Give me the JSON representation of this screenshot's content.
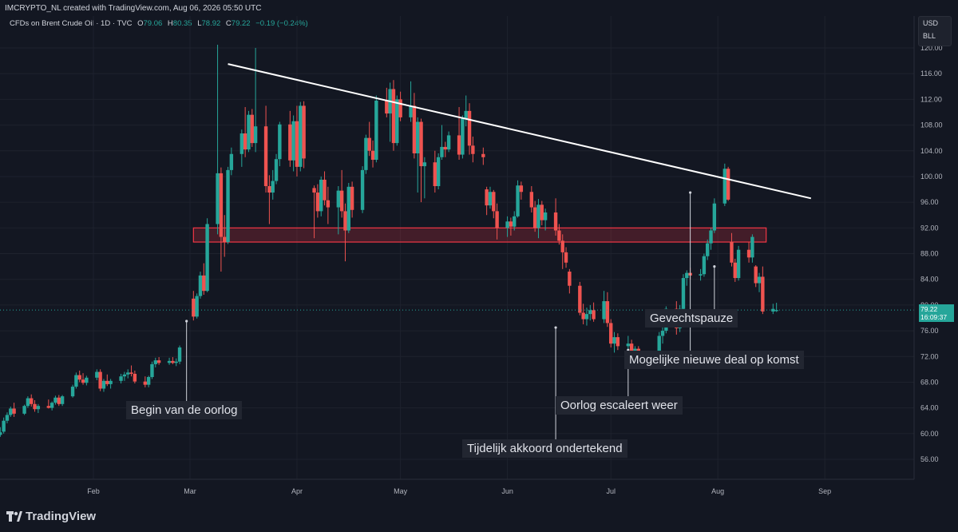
{
  "header": {
    "watermark": "IMCRYPTO_NL created with TradingView.com, Aug 06, 2026 05:50 UTC"
  },
  "legend": {
    "symbol": "CFDs on Brent Crude Oil · 1D · TVC",
    "open_label": "O",
    "open": "79.06",
    "high_label": "H",
    "high": "80.35",
    "low_label": "L",
    "low": "78.92",
    "close_label": "C",
    "close": "79.22",
    "change": "−0.19 (−0.24%)"
  },
  "currency": {
    "line1": "USD",
    "line2": "BLL"
  },
  "last_price": {
    "price": "79.22",
    "countdown": "16:09:37"
  },
  "annotations": [
    {
      "text": "Begin van de oorlog"
    },
    {
      "text": "Tijdelijk akkoord ondertekend"
    },
    {
      "text": "Oorlog escaleert weer"
    },
    {
      "text": "Mogelijke nieuwe deal op komst"
    },
    {
      "text": "Gevechtspauze"
    }
  ],
  "footer": {
    "logo_text": "TradingView"
  },
  "colors": {
    "up": "#26a69a",
    "down": "#ef5350",
    "trendline": "#ffffff",
    "zone": "#f23645",
    "background": "#131722"
  },
  "chart_data": {
    "type": "candlestick",
    "symbol": "CFDs on Brent Crude Oil",
    "interval": "1D",
    "x_tick_labels": [
      "Feb",
      "Mar",
      "Apr",
      "May",
      "Jun",
      "Jul",
      "Aug",
      "Sep"
    ],
    "y_ticks": [
      56,
      60,
      64,
      68,
      72,
      76,
      80,
      84,
      88,
      92,
      96,
      100,
      104,
      108,
      112,
      116,
      120
    ],
    "y_tick_labels": [
      "56.00",
      "60.00",
      "64.00",
      "68.00",
      "72.00",
      "76.00",
      "80.00",
      "84.00",
      "88.00",
      "92.00",
      "96.00",
      "100.00",
      "104.00",
      "108.00",
      "112.00",
      "116.00",
      "120.00"
    ],
    "ylim": [
      53,
      124
    ],
    "grid": true,
    "resistance_zone": {
      "from": 89.8,
      "to": 92.0,
      "start": "2026-03-02",
      "end": "2026-08-15"
    },
    "trendline": {
      "start": {
        "date": "2026-03-12",
        "price": 117.5
      },
      "end": {
        "date": "2026-08-28",
        "price": 96.6
      }
    },
    "event_markers": [
      {
        "date": "2026-02-28",
        "price": 77.5,
        "label": "Begin van de oorlog"
      },
      {
        "date": "2026-06-15",
        "price": 76.5,
        "label": "Tijdelijk akkoord ondertekend"
      },
      {
        "date": "2026-07-06",
        "price": 73.0,
        "label": "Oorlog escaleert weer"
      },
      {
        "date": "2026-07-24",
        "price": 97.5,
        "label": "Gevechtspauze"
      },
      {
        "date": "2026-07-31",
        "price": 86.0,
        "label": "Mogelijke nieuwe deal op komst"
      }
    ],
    "candles": [
      [
        "2026-01-05",
        59.8,
        61.0,
        59.5,
        60.2
      ],
      [
        "2026-01-06",
        60.3,
        62.5,
        60.0,
        62.0
      ],
      [
        "2026-01-07",
        62.0,
        63.3,
        61.6,
        62.9
      ],
      [
        "2026-01-08",
        62.9,
        64.2,
        62.6,
        63.9
      ],
      [
        "2026-01-09",
        63.9,
        64.8,
        62.6,
        63.1
      ],
      [
        "2026-01-12",
        63.1,
        64.5,
        62.9,
        64.3
      ],
      [
        "2026-01-13",
        64.3,
        65.8,
        64.0,
        65.5
      ],
      [
        "2026-01-14",
        65.5,
        66.1,
        64.2,
        64.6
      ],
      [
        "2026-01-15",
        64.6,
        65.2,
        63.4,
        63.8
      ],
      [
        "2026-01-16",
        63.8,
        64.6,
        63.2,
        64.3
      ],
      [
        "2026-01-19",
        64.3,
        65.3,
        63.9,
        64.0
      ],
      [
        "2026-01-20",
        64.0,
        65.0,
        63.6,
        64.8
      ],
      [
        "2026-01-21",
        64.8,
        65.9,
        64.5,
        65.6
      ],
      [
        "2026-01-22",
        65.6,
        66.0,
        64.3,
        64.6
      ],
      [
        "2026-01-23",
        64.6,
        66.0,
        64.3,
        65.8
      ],
      [
        "2026-01-26",
        65.8,
        67.6,
        65.6,
        67.3
      ],
      [
        "2026-01-27",
        67.3,
        69.5,
        67.0,
        69.1
      ],
      [
        "2026-01-28",
        69.1,
        69.8,
        68.0,
        68.4
      ],
      [
        "2026-01-29",
        68.4,
        69.4,
        67.6,
        67.9
      ],
      [
        "2026-01-30",
        67.9,
        69.0,
        67.5,
        68.7
      ],
      [
        "2026-02-02",
        68.7,
        70.0,
        68.3,
        69.6
      ],
      [
        "2026-02-03",
        69.6,
        70.0,
        66.6,
        67.0
      ],
      [
        "2026-02-04",
        67.0,
        68.5,
        66.5,
        68.2
      ],
      [
        "2026-02-05",
        68.2,
        69.2,
        67.4,
        67.7
      ],
      [
        "2026-02-06",
        67.7,
        68.5,
        67.0,
        68.2
      ],
      [
        "2026-02-09",
        68.2,
        69.3,
        67.8,
        68.9
      ],
      [
        "2026-02-10",
        68.9,
        69.6,
        68.2,
        69.2
      ],
      [
        "2026-02-11",
        69.2,
        70.0,
        68.6,
        69.5
      ],
      [
        "2026-02-12",
        69.5,
        70.6,
        68.9,
        69.3
      ],
      [
        "2026-02-13",
        69.3,
        69.8,
        67.8,
        68.1
      ],
      [
        "2026-02-16",
        68.1,
        68.9,
        67.2,
        67.6
      ],
      [
        "2026-02-17",
        67.6,
        69.0,
        67.2,
        68.8
      ],
      [
        "2026-02-18",
        68.8,
        71.2,
        68.5,
        70.8
      ],
      [
        "2026-02-19",
        70.8,
        71.8,
        70.3,
        71.4
      ],
      [
        "2026-02-20",
        71.4,
        71.9,
        70.7,
        71.0
      ],
      [
        "2026-02-23",
        71.0,
        71.8,
        70.7,
        71.3
      ],
      [
        "2026-02-24",
        71.3,
        71.9,
        70.8,
        71.0
      ],
      [
        "2026-02-25",
        71.0,
        71.7,
        70.5,
        71.2
      ],
      [
        "2026-02-26",
        71.2,
        73.7,
        70.8,
        73.4
      ],
      [
        "2026-03-02",
        81.0,
        82.2,
        77.6,
        78.2
      ],
      [
        "2026-03-03",
        78.2,
        81.8,
        77.9,
        81.4
      ],
      [
        "2026-03-04",
        81.4,
        85.2,
        81.0,
        84.6
      ],
      [
        "2026-03-05",
        84.6,
        86.5,
        81.6,
        82.2
      ],
      [
        "2026-03-06",
        82.2,
        93.5,
        82.0,
        92.6
      ],
      [
        "2026-03-09",
        92.6,
        120.5,
        91.0,
        100.5
      ],
      [
        "2026-03-10",
        100.5,
        101.4,
        85.2,
        90.6
      ],
      [
        "2026-03-11",
        90.6,
        94.0,
        87.5,
        89.8
      ],
      [
        "2026-03-12",
        89.8,
        101.5,
        89.5,
        101.0
      ],
      [
        "2026-03-13",
        101.0,
        104.5,
        100.2,
        103.5
      ],
      [
        "2026-03-16",
        103.5,
        107.3,
        101.5,
        106.7
      ],
      [
        "2026-03-17",
        106.7,
        110.8,
        103.0,
        104.2
      ],
      [
        "2026-03-18",
        104.2,
        110.2,
        103.8,
        109.6
      ],
      [
        "2026-03-19",
        109.6,
        110.5,
        104.6,
        105.2
      ],
      [
        "2026-03-20",
        105.2,
        120.0,
        103.8,
        107.8
      ],
      [
        "2026-03-23",
        107.8,
        111.0,
        97.5,
        98.5
      ],
      [
        "2026-03-24",
        98.5,
        100.2,
        92.6,
        97.5
      ],
      [
        "2026-03-25",
        97.5,
        101.0,
        96.4,
        99.3
      ],
      [
        "2026-03-26",
        99.3,
        103.5,
        98.8,
        102.7
      ],
      [
        "2026-03-27",
        102.7,
        108.5,
        101.6,
        108.1
      ],
      [
        "2026-03-30",
        108.1,
        110.2,
        101.5,
        102.5
      ],
      [
        "2026-03-31",
        102.5,
        109.5,
        100.8,
        108.6
      ],
      [
        "2026-04-01",
        108.6,
        111.0,
        100.0,
        101.5
      ],
      [
        "2026-04-02",
        101.5,
        111.6,
        100.8,
        111.0
      ],
      [
        "2026-04-03",
        111.0,
        111.7,
        101.3,
        102.8
      ],
      [
        "2026-04-06",
        98.2,
        98.6,
        90.4,
        97.5
      ],
      [
        "2026-04-07",
        97.5,
        98.8,
        93.6,
        94.6
      ],
      [
        "2026-04-08",
        94.6,
        100.0,
        93.8,
        99.5
      ],
      [
        "2026-04-09",
        99.5,
        100.8,
        95.5,
        96.3
      ],
      [
        "2026-04-10",
        96.3,
        98.4,
        92.6,
        95.2
      ],
      [
        "2026-04-13",
        95.2,
        98.5,
        91.0,
        97.8
      ],
      [
        "2026-04-14",
        97.8,
        101.0,
        93.6,
        94.6
      ],
      [
        "2026-04-15",
        94.6,
        95.8,
        86.8,
        91.6
      ],
      [
        "2026-04-16",
        91.6,
        99.0,
        91.2,
        98.4
      ],
      [
        "2026-04-17",
        98.4,
        99.2,
        93.6,
        94.8
      ],
      [
        "2026-04-20",
        94.8,
        101.6,
        94.3,
        101.0
      ],
      [
        "2026-04-21",
        101.0,
        106.5,
        100.4,
        106.0
      ],
      [
        "2026-04-22",
        106.0,
        108.5,
        103.2,
        104.0
      ],
      [
        "2026-04-23",
        104.0,
        105.6,
        101.4,
        102.6
      ],
      [
        "2026-04-24",
        102.6,
        112.6,
        102.2,
        111.8
      ],
      [
        "2026-04-27",
        111.8,
        113.8,
        109.2,
        109.8
      ],
      [
        "2026-04-28",
        109.8,
        114.6,
        105.4,
        113.6
      ],
      [
        "2026-04-29",
        113.6,
        115.0,
        104.0,
        105.2
      ],
      [
        "2026-04-30",
        105.2,
        112.6,
        104.8,
        112.0
      ],
      [
        "2026-05-01",
        112.0,
        113.2,
        108.6,
        109.2
      ],
      [
        "2026-05-04",
        109.2,
        114.8,
        108.5,
        111.0
      ],
      [
        "2026-05-05",
        111.0,
        113.0,
        102.8,
        103.6
      ],
      [
        "2026-05-06",
        103.6,
        109.2,
        97.5,
        108.5
      ],
      [
        "2026-05-07",
        108.5,
        109.0,
        96.0,
        101.6
      ],
      [
        "2026-05-08",
        101.6,
        103.0,
        96.6,
        102.2
      ],
      [
        "2026-05-11",
        102.2,
        104.0,
        97.5,
        98.5
      ],
      [
        "2026-05-12",
        98.5,
        103.6,
        98.0,
        103.0
      ],
      [
        "2026-05-13",
        103.0,
        108.0,
        102.6,
        104.6
      ],
      [
        "2026-05-14",
        104.6,
        105.4,
        103.0,
        104.2
      ],
      [
        "2026-05-15",
        104.2,
        107.0,
        103.8,
        106.4
      ],
      [
        "2026-05-18",
        106.4,
        110.8,
        102.6,
        103.4
      ],
      [
        "2026-05-19",
        103.4,
        109.5,
        102.8,
        109.0
      ],
      [
        "2026-05-20",
        109.0,
        112.6,
        107.8,
        110.2
      ],
      [
        "2026-05-21",
        110.2,
        111.4,
        103.4,
        104.8
      ],
      [
        "2026-05-22",
        104.8,
        106.2,
        102.2,
        103.5
      ],
      [
        "2026-05-25",
        103.5,
        104.5,
        101.8,
        103.0
      ],
      [
        "2026-05-26",
        98.0,
        98.4,
        94.0,
        95.5
      ],
      [
        "2026-05-27",
        95.5,
        98.4,
        95.0,
        97.6
      ],
      [
        "2026-05-28",
        97.6,
        97.9,
        93.5,
        94.6
      ],
      [
        "2026-05-29",
        94.6,
        95.8,
        90.2,
        92.0
      ],
      [
        "2026-06-01",
        92.0,
        93.8,
        90.6,
        93.0
      ],
      [
        "2026-06-02",
        93.0,
        93.6,
        90.8,
        92.2
      ],
      [
        "2026-06-03",
        92.2,
        94.6,
        91.6,
        93.8
      ],
      [
        "2026-06-04",
        93.8,
        99.4,
        93.6,
        98.6
      ],
      [
        "2026-06-05",
        98.6,
        99.2,
        96.4,
        97.6
      ],
      [
        "2026-06-08",
        97.6,
        98.5,
        94.4,
        95.2
      ],
      [
        "2026-06-09",
        95.2,
        96.2,
        91.4,
        92.0
      ],
      [
        "2026-06-10",
        92.0,
        96.5,
        90.4,
        95.6
      ],
      [
        "2026-06-11",
        95.6,
        96.2,
        92.4,
        93.2
      ],
      [
        "2026-06-12",
        93.2,
        95.0,
        91.6,
        94.4
      ],
      [
        "2026-06-15",
        94.4,
        96.6,
        90.8,
        91.6
      ],
      [
        "2026-06-16",
        91.6,
        92.6,
        89.4,
        90.0
      ],
      [
        "2026-06-17",
        90.0,
        91.0,
        85.6,
        88.2
      ],
      [
        "2026-06-18",
        88.2,
        89.0,
        85.8,
        86.6
      ],
      [
        "2026-06-19",
        85.2,
        85.6,
        81.8,
        83.0
      ],
      [
        "2026-06-22",
        83.0,
        83.6,
        78.4,
        78.8
      ],
      [
        "2026-06-23",
        78.8,
        80.2,
        77.0,
        77.8
      ],
      [
        "2026-06-24",
        77.8,
        79.6,
        76.8,
        78.6
      ],
      [
        "2026-06-25",
        78.6,
        80.0,
        77.6,
        79.2
      ],
      [
        "2026-06-26",
        79.2,
        80.4,
        77.4,
        77.8
      ],
      [
        "2026-06-29",
        77.8,
        82.2,
        77.2,
        80.6
      ],
      [
        "2026-06-30",
        80.6,
        82.0,
        76.6,
        77.2
      ],
      [
        "2026-07-01",
        77.2,
        77.8,
        73.4,
        74.0
      ],
      [
        "2026-07-02",
        74.0,
        75.8,
        72.6,
        75.0
      ],
      [
        "2026-07-03",
        75.0,
        75.6,
        73.0,
        73.6
      ],
      [
        "2026-07-06",
        73.6,
        75.2,
        72.6,
        74.0
      ],
      [
        "2026-07-07",
        74.0,
        74.6,
        72.4,
        72.8
      ],
      [
        "2026-07-08",
        72.8,
        73.6,
        71.8,
        73.2
      ],
      [
        "2026-07-09",
        73.2,
        73.6,
        70.6,
        71.4
      ],
      [
        "2026-07-10",
        71.4,
        72.2,
        70.8,
        71.8
      ],
      [
        "2026-07-13",
        71.8,
        72.2,
        71.0,
        71.6
      ],
      [
        "2026-07-14",
        71.6,
        72.6,
        71.3,
        72.2
      ],
      [
        "2026-07-15",
        72.2,
        75.8,
        72.0,
        75.2
      ],
      [
        "2026-07-16",
        75.2,
        76.6,
        74.0,
        76.0
      ],
      [
        "2026-07-17",
        76.0,
        79.8,
        75.6,
        79.4
      ],
      [
        "2026-07-20",
        79.4,
        80.6,
        75.4,
        76.4
      ],
      [
        "2026-07-21",
        76.4,
        80.0,
        75.8,
        79.4
      ],
      [
        "2026-07-22",
        79.4,
        84.8,
        78.8,
        84.2
      ],
      [
        "2026-07-23",
        84.2,
        85.4,
        83.0,
        85.0
      ],
      [
        "2026-07-24",
        85.0,
        85.8,
        84.0,
        84.6
      ],
      [
        "2026-07-27",
        84.6,
        85.6,
        83.8,
        84.8
      ],
      [
        "2026-07-28",
        84.8,
        88.0,
        84.4,
        87.6
      ],
      [
        "2026-07-29",
        87.6,
        90.2,
        87.0,
        89.6
      ],
      [
        "2026-07-30",
        89.6,
        92.0,
        88.6,
        91.6
      ],
      [
        "2026-07-31",
        91.6,
        96.6,
        91.2,
        95.8
      ],
      [
        "2026-08-03",
        95.8,
        102.0,
        95.4,
        101.2
      ],
      [
        "2026-08-04",
        101.2,
        101.5,
        96.2,
        96.4
      ],
      [
        "2026-08-05",
        89.8,
        91.2,
        86.0,
        86.6
      ],
      [
        "2026-08-06",
        86.6,
        87.2,
        83.6,
        84.2
      ],
      [
        "2026-08-07",
        84.2,
        89.2,
        83.8,
        88.6
      ],
      [
        "2026-08-10",
        88.6,
        89.8,
        86.6,
        87.4
      ],
      [
        "2026-08-11",
        87.4,
        91.0,
        86.6,
        90.6
      ],
      [
        "2026-08-12",
        86.0,
        86.2,
        82.8,
        83.4
      ],
      [
        "2026-08-13",
        83.4,
        85.0,
        82.0,
        84.4
      ],
      [
        "2026-08-14",
        84.4,
        86.0,
        78.6,
        79.0
      ],
      [
        "2026-08-17",
        79.0,
        80.2,
        78.6,
        79.4
      ],
      [
        "2026-08-18",
        79.06,
        80.35,
        78.92,
        79.22
      ]
    ]
  }
}
